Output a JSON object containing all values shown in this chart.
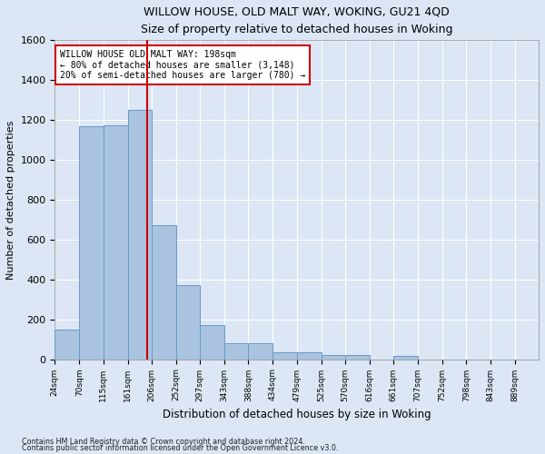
{
  "title": "WILLOW HOUSE, OLD MALT WAY, WOKING, GU21 4QD",
  "subtitle": "Size of property relative to detached houses in Woking",
  "xlabel": "Distribution of detached houses by size in Woking",
  "ylabel": "Number of detached properties",
  "footnote1": "Contains HM Land Registry data © Crown copyright and database right 2024.",
  "footnote2": "Contains public sector information licensed under the Open Government Licence v3.0.",
  "annotation_line1": "WILLOW HOUSE OLD MALT WAY: 198sqm",
  "annotation_line2": "← 80% of detached houses are smaller (3,148)",
  "annotation_line3": "20% of semi-detached houses are larger (780) →",
  "property_size": 198,
  "bin_edges": [
    24,
    70,
    115,
    161,
    206,
    252,
    297,
    343,
    388,
    434,
    479,
    525,
    570,
    616,
    661,
    707,
    752,
    798,
    843,
    889,
    934
  ],
  "bar_heights": [
    150,
    1170,
    1175,
    1250,
    670,
    370,
    170,
    80,
    80,
    35,
    35,
    20,
    20,
    0,
    15,
    0,
    0,
    0,
    0,
    0
  ],
  "bar_color": "#aac4e0",
  "bar_edge_color": "#6699cc",
  "red_line_x": 198,
  "red_line_color": "#cc0000",
  "annotation_box_color": "#cc0000",
  "fig_background_color": "#dce6f5",
  "plot_background_color": "#dce6f5",
  "grid_color": "#ffffff",
  "ylim": [
    0,
    1600
  ],
  "yticks": [
    0,
    200,
    400,
    600,
    800,
    1000,
    1200,
    1400,
    1600
  ]
}
